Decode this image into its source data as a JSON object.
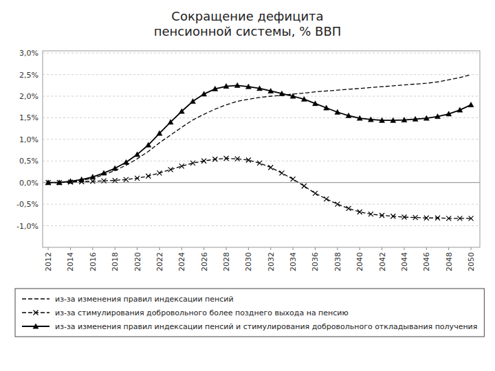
{
  "chart_data": {
    "type": "line",
    "title": "Сокращение дефицита\nпенсионной системы, % ВВП",
    "x": [
      2012,
      2013,
      2014,
      2015,
      2016,
      2017,
      2018,
      2019,
      2020,
      2021,
      2022,
      2023,
      2024,
      2025,
      2026,
      2027,
      2028,
      2029,
      2030,
      2031,
      2032,
      2033,
      2034,
      2035,
      2036,
      2037,
      2038,
      2039,
      2040,
      2041,
      2042,
      2043,
      2044,
      2045,
      2046,
      2047,
      2048,
      2049,
      2050
    ],
    "series": [
      {
        "name": "из-за изменения правил индексации пенсий",
        "color": "#000000",
        "line_style": "dashed",
        "marker": "none",
        "values": [
          0.0,
          0.0,
          0.02,
          0.05,
          0.1,
          0.18,
          0.28,
          0.4,
          0.55,
          0.72,
          0.92,
          1.1,
          1.28,
          1.45,
          1.58,
          1.7,
          1.8,
          1.88,
          1.93,
          1.97,
          2.0,
          2.02,
          2.05,
          2.07,
          2.1,
          2.12,
          2.14,
          2.16,
          2.18,
          2.2,
          2.22,
          2.24,
          2.26,
          2.28,
          2.3,
          2.33,
          2.38,
          2.43,
          2.5
        ]
      },
      {
        "name": "из-за стимулирования добровольного более позднего выхода на пенсию",
        "color": "#000000",
        "line_style": "dashed",
        "marker": "x",
        "values": [
          0.0,
          0.0,
          0.01,
          0.02,
          0.03,
          0.04,
          0.05,
          0.07,
          0.1,
          0.15,
          0.22,
          0.3,
          0.38,
          0.45,
          0.5,
          0.54,
          0.56,
          0.55,
          0.52,
          0.45,
          0.35,
          0.22,
          0.08,
          -0.08,
          -0.25,
          -0.38,
          -0.5,
          -0.6,
          -0.68,
          -0.73,
          -0.76,
          -0.78,
          -0.8,
          -0.81,
          -0.82,
          -0.82,
          -0.83,
          -0.83,
          -0.83
        ]
      },
      {
        "name": "из-за изменения правил индексации пенсий и стимулирования добровольного откладывания получения",
        "color": "#000000",
        "line_style": "solid",
        "marker": "triangle",
        "values": [
          0.0,
          0.0,
          0.03,
          0.07,
          0.13,
          0.22,
          0.33,
          0.47,
          0.65,
          0.87,
          1.14,
          1.4,
          1.65,
          1.88,
          2.05,
          2.17,
          2.23,
          2.25,
          2.22,
          2.18,
          2.12,
          2.06,
          2.0,
          1.93,
          1.83,
          1.73,
          1.63,
          1.55,
          1.49,
          1.46,
          1.44,
          1.44,
          1.45,
          1.47,
          1.49,
          1.53,
          1.59,
          1.68,
          1.8
        ]
      }
    ],
    "xlim": [
      2011.5,
      2050.8
    ],
    "xticks": [
      2012,
      2014,
      2016,
      2018,
      2020,
      2022,
      2024,
      2026,
      2028,
      2030,
      2032,
      2034,
      2036,
      2038,
      2040,
      2042,
      2044,
      2046,
      2048,
      2050
    ],
    "ylim": [
      -1.5,
      3.05
    ],
    "yticks": [
      {
        "value": -1.0,
        "label": "-1,0%"
      },
      {
        "value": -0.5,
        "label": "-0,5%"
      },
      {
        "value": 0.0,
        "label": "0,0%"
      },
      {
        "value": 0.5,
        "label": "0,5%"
      },
      {
        "value": 1.0,
        "label": "1,0%"
      },
      {
        "value": 1.5,
        "label": "1,5%"
      },
      {
        "value": 2.0,
        "label": "2,0%"
      },
      {
        "value": 2.5,
        "label": "2,5%"
      },
      {
        "value": 3.0,
        "label": "3,0%"
      }
    ],
    "grid": true,
    "legend": "bottom"
  }
}
